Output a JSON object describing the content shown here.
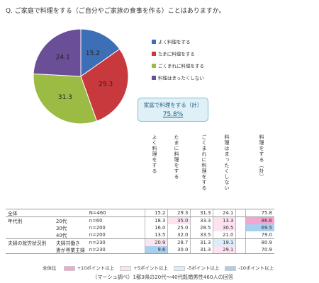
{
  "question": "Q. ご家庭で料理をする（ご自分やご家族の食事を作る）ことはありますか。",
  "chart_data": [
    {
      "type": "pie",
      "slices": [
        {
          "label": "よく料理をする",
          "value": 15.2,
          "color": "#3d6fb6"
        },
        {
          "label": "たまに料理をする",
          "value": 29.3,
          "color": "#c8393d"
        },
        {
          "label": "ごくまれに料理をする",
          "value": 31.3,
          "color": "#9bbb44"
        },
        {
          "label": "料理はまったくしない",
          "value": 24.1,
          "color": "#6a4f98"
        }
      ],
      "legend_position": "right",
      "summary": {
        "label": "家庭で料理をする（計）",
        "value": "75.8%"
      }
    },
    {
      "type": "table",
      "headers": [
        "よく料理をする",
        "たまに料理をする",
        "ごくまれに料理をする",
        "料理はまったくしない",
        "料理をする（計）"
      ],
      "rows": [
        {
          "group": "全体",
          "sub": "",
          "n": "N=460",
          "values": [
            "15.2",
            "29.3",
            "31.3",
            "24.1"
          ],
          "total": "75.8",
          "highlights": [
            "",
            "",
            "",
            ""
          ],
          "total_highlight": ""
        },
        {
          "group": "年代別",
          "sub": "20代",
          "n": "n=60",
          "values": [
            "18.3",
            "35.0",
            "33.3",
            "13.3"
          ],
          "total": "86.6",
          "highlights": [
            "",
            "#fbe3f0",
            "",
            "#fbe3f0"
          ],
          "total_highlight": "#f3a6cf"
        },
        {
          "group": "",
          "sub": "30代",
          "n": "n=200",
          "values": [
            "16.0",
            "25.0",
            "28.5",
            "30.5"
          ],
          "total": "69.5",
          "highlights": [
            "",
            "",
            "",
            "#fbe3f0"
          ],
          "total_highlight": "#a9cfee"
        },
        {
          "group": "",
          "sub": "40代",
          "n": "n=200",
          "values": [
            "13.5",
            "32.0",
            "33.5",
            "21.0"
          ],
          "total": "79.0",
          "highlights": [
            "",
            "",
            "",
            ""
          ],
          "total_highlight": ""
        },
        {
          "group": "夫婦の就労状況別",
          "sub": "夫婦共働き",
          "n": "n=230",
          "values": [
            "20.9",
            "28.7",
            "31.3",
            "19.1"
          ],
          "total": "80.9",
          "highlights": [
            "#fbe3f0",
            "",
            "",
            "#dcedfa"
          ],
          "total_highlight": ""
        },
        {
          "group": "",
          "sub": "妻が専業主婦",
          "n": "n=230",
          "values": [
            "9.6",
            "30.0",
            "31.3",
            "29.1"
          ],
          "total": "70.9",
          "highlights": [
            "#a9cfee",
            "",
            "",
            "#fbe3f0"
          ],
          "total_highlight": ""
        }
      ]
    }
  ],
  "legend": {
    "title": "全体比",
    "items": [
      {
        "label": "+10ポイント以上",
        "color": "#f3a6cf"
      },
      {
        "label": "+5ポイント以上",
        "color": "#fbe3f0"
      },
      {
        "label": "-5ポイント以上",
        "color": "#dcedfa"
      },
      {
        "label": "-10ポイント以上",
        "color": "#a9cfee"
      }
    ]
  },
  "footnote": "（マーシュ調べ）1都3県の20代〜40代既婚男性460人の回答"
}
